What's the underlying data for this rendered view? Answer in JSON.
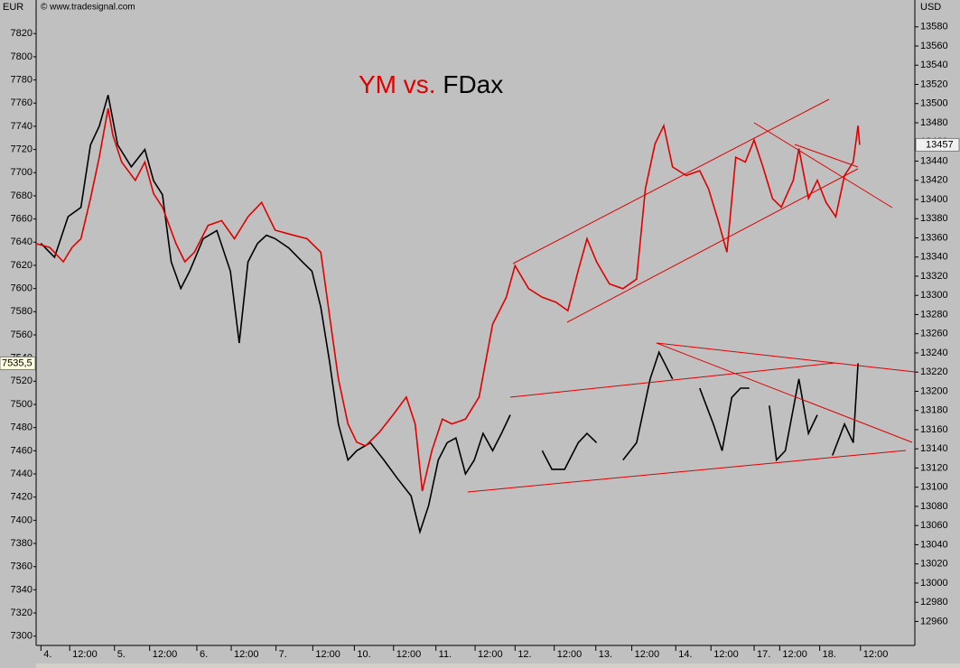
{
  "chart_data": {
    "type": "line",
    "title_connector": "vs.",
    "copyright": "© www.tradesignal.com",
    "left_axis_label": "EUR",
    "right_axis_label": "USD",
    "xlim": [
      -0.06,
      10.93
    ],
    "xticks": [
      {
        "value": 0,
        "label": "4."
      },
      {
        "value": 0.36,
        "label": "12:00"
      },
      {
        "value": 0.92,
        "label": "5."
      },
      {
        "value": 1.36,
        "label": "12:00"
      },
      {
        "value": 1.95,
        "label": "6."
      },
      {
        "value": 2.38,
        "label": "12:00"
      },
      {
        "value": 2.94,
        "label": "7."
      },
      {
        "value": 3.4,
        "label": "12:00"
      },
      {
        "value": 3.92,
        "label": "10."
      },
      {
        "value": 4.41,
        "label": "12:00"
      },
      {
        "value": 4.94,
        "label": "11."
      },
      {
        "value": 5.43,
        "label": "12:00"
      },
      {
        "value": 5.93,
        "label": "12."
      },
      {
        "value": 6.42,
        "label": "12:00"
      },
      {
        "value": 6.94,
        "label": "13."
      },
      {
        "value": 7.39,
        "label": "12:00"
      },
      {
        "value": 7.94,
        "label": "14."
      },
      {
        "value": 8.38,
        "label": "12:00"
      },
      {
        "value": 8.92,
        "label": "17."
      },
      {
        "value": 9.24,
        "label": "12:00"
      },
      {
        "value": 9.74,
        "label": "18."
      },
      {
        "value": 10.25,
        "label": "12:00"
      }
    ],
    "ylim": [
      7292,
      7849
    ],
    "yticks": [
      7300,
      7320,
      7340,
      7360,
      7380,
      7400,
      7420,
      7440,
      7460,
      7480,
      7500,
      7520,
      7540,
      7560,
      7580,
      7600,
      7620,
      7640,
      7660,
      7680,
      7700,
      7720,
      7740,
      7760,
      7780,
      7800,
      7820
    ],
    "y2lim": [
      12935,
      13608
    ],
    "y2ticks": [
      12960,
      12980,
      13000,
      13020,
      13040,
      13060,
      13080,
      13100,
      13120,
      13140,
      13160,
      13180,
      13200,
      13220,
      13240,
      13260,
      13280,
      13300,
      13320,
      13340,
      13360,
      13380,
      13400,
      13420,
      13440,
      13460,
      13480,
      13500,
      13520,
      13540,
      13560,
      13580
    ],
    "series": [
      {
        "name": "YM",
        "color": "#e00000",
        "axis": "y2",
        "last_label": "13457",
        "x": [
          -0.06,
          0.11,
          0.28,
          0.39,
          0.5,
          0.62,
          0.73,
          0.84,
          0.9,
          1.01,
          1.18,
          1.3,
          1.41,
          1.52,
          1.69,
          1.8,
          1.92,
          2.09,
          2.26,
          2.42,
          2.59,
          2.76,
          2.93,
          3.1,
          3.33,
          3.5,
          3.61,
          3.72,
          3.84,
          3.95,
          4.06,
          4.23,
          4.4,
          4.57,
          4.68,
          4.77,
          4.89,
          5.02,
          5.14,
          5.31,
          5.48,
          5.65,
          5.82,
          5.93,
          6.1,
          6.27,
          6.44,
          6.59,
          6.72,
          6.83,
          6.95,
          7.11,
          7.28,
          7.45,
          7.56,
          7.68,
          7.79,
          7.9,
          8.07,
          8.24,
          8.35,
          8.47,
          8.58,
          8.69,
          8.81,
          8.92,
          9.03,
          9.15,
          9.26,
          9.41,
          9.48,
          9.6,
          9.71,
          9.82,
          9.94,
          10.05,
          10.16,
          10.22,
          10.24
        ],
        "values": [
          13354,
          13350,
          13335,
          13350,
          13359,
          13401,
          13444,
          13495,
          13467,
          13439,
          13420,
          13439,
          13406,
          13392,
          13354,
          13335,
          13345,
          13373,
          13378,
          13359,
          13382,
          13397,
          13368,
          13364,
          13359,
          13345,
          13279,
          13213,
          13166,
          13147,
          13143,
          13157,
          13175,
          13194,
          13166,
          13096,
          13138,
          13171,
          13166,
          13171,
          13194,
          13270,
          13298,
          13331,
          13307,
          13298,
          13293,
          13284,
          13326,
          13359,
          13335,
          13312,
          13307,
          13317,
          13411,
          13458,
          13477,
          13434,
          13425,
          13430,
          13411,
          13378,
          13345,
          13444,
          13439,
          13462,
          13434,
          13401,
          13392,
          13420,
          13453,
          13401,
          13420,
          13397,
          13382,
          13425,
          13439,
          13477,
          13457
        ]
      },
      {
        "name": "FDax",
        "color": "#000000",
        "axis": "y",
        "last_label": "7535,5",
        "x": [
          0,
          0.17,
          0.34,
          0.5,
          0.62,
          0.73,
          0.84,
          0.96,
          1.13,
          1.3,
          1.41,
          1.52,
          1.63,
          1.75,
          1.86,
          2.03,
          2.2,
          2.37,
          2.48,
          2.59,
          2.71,
          2.82,
          2.93,
          3.1,
          3.27,
          3.39,
          3.5,
          3.61,
          3.72,
          3.84,
          3.95,
          4.12,
          4.29,
          4.46,
          4.63,
          4.74,
          4.85,
          4.97,
          5.08,
          5.19,
          5.31,
          5.42,
          5.53,
          5.65,
          5.76,
          5.87,
          5.95,
          6.27,
          6.39,
          6.55,
          6.72,
          6.83,
          6.95,
          7.1,
          7.28,
          7.45,
          7.62,
          7.73,
          7.9,
          8.05,
          8.24,
          8.41,
          8.52,
          8.64,
          8.75,
          8.86,
          9.0,
          9.11,
          9.2,
          9.31,
          9.48,
          9.6,
          9.71,
          9.8,
          9.9,
          10.05,
          10.16,
          10.22
        ],
        "values": [
          7639,
          7627,
          7662,
          7670,
          7724,
          7740,
          7767,
          7724,
          7705,
          7720,
          7693,
          7681,
          7623,
          7600,
          7615,
          7643,
          7650,
          7615,
          7553,
          7623,
          7639,
          7646,
          7643,
          7635,
          7623,
          7615,
          7584,
          7537,
          7483,
          7452,
          7460,
          7467,
          7452,
          7436,
          7421,
          7390,
          7413,
          7452,
          7467,
          7471,
          7440,
          7452,
          7475,
          7460,
          7475,
          7491,
          null,
          7460,
          7444,
          7444,
          7467,
          7475,
          7467,
          null,
          7452,
          7467,
          7522,
          7545,
          7522,
          null,
          7514,
          7483,
          7460,
          7506,
          7514,
          7514,
          null,
          7499,
          7452,
          7460,
          7522,
          7475,
          7491,
          null,
          7456,
          7483,
          7467,
          7535.5
        ]
      }
    ]
  }
}
